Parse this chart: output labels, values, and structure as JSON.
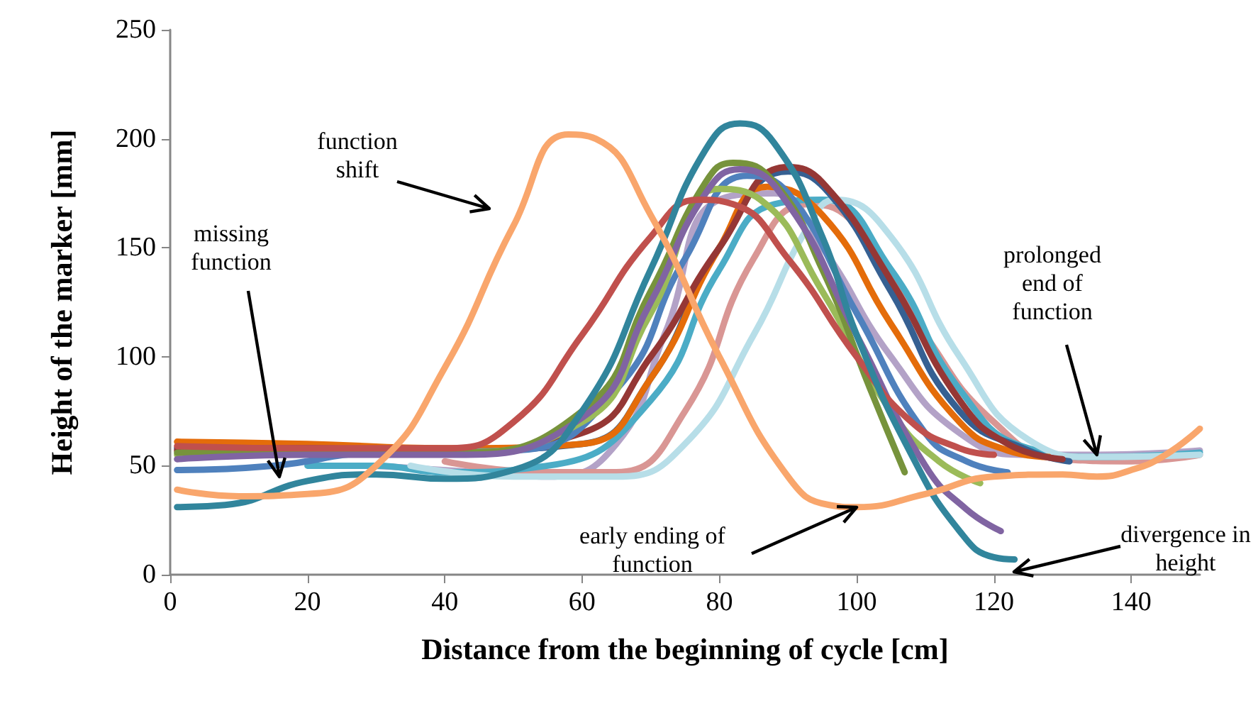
{
  "chart_data": {
    "type": "line",
    "xlabel": "Distance from the beginning of cycle [cm]",
    "ylabel": "Height of the marker [mm]",
    "xlim": [
      0,
      150
    ],
    "xticks": [
      0,
      20,
      40,
      60,
      80,
      100,
      120,
      140
    ],
    "ylim": [
      0,
      250
    ],
    "yticks": [
      0,
      50,
      100,
      150,
      200,
      250
    ],
    "grid": false,
    "marker": "none",
    "line_style": "solid",
    "annotations": [
      "function shift",
      "missing function",
      {
        "text": "early ending of function",
        "x": 100,
        "y": 31
      },
      {
        "text": "prolonged end of function",
        "x": 135,
        "y": 55
      },
      "divergence in height"
    ],
    "series": [
      {
        "color": "#b3a2c7",
        "x": [
          30,
          45,
          55,
          65,
          72,
          80,
          88,
          95,
          105,
          115,
          125,
          135,
          150
        ],
        "values": [
          50,
          47,
          45,
          60,
          110,
          172,
          175,
          150,
          100,
          65,
          55,
          55,
          57
        ]
      },
      {
        "color": "#d99694",
        "x": [
          40,
          55,
          65,
          75,
          85,
          93,
          100,
          110,
          120,
          130,
          140,
          150
        ],
        "values": [
          52,
          47,
          47,
          75,
          145,
          170,
          160,
          110,
          70,
          53,
          52,
          55
        ]
      },
      {
        "color": "#4bacc6",
        "x": [
          20,
          30,
          40,
          55,
          70,
          80,
          88,
          95,
          105,
          115,
          125,
          135,
          150
        ],
        "values": [
          50,
          50,
          47,
          50,
          80,
          140,
          170,
          172,
          140,
          85,
          58,
          54,
          56
        ]
      },
      {
        "color": "#b7dee8",
        "x": [
          35,
          50,
          65,
          75,
          85,
          93,
          97,
          105,
          115,
          125,
          135,
          150
        ],
        "values": [
          50,
          45,
          45,
          60,
          110,
          160,
          172,
          155,
          100,
          62,
          54,
          55
        ]
      },
      {
        "color": "#366092",
        "x": [
          1,
          40,
          60,
          70,
          80,
          90,
          96,
          105,
          115,
          125,
          131
        ],
        "values": [
          58,
          57,
          60,
          90,
          150,
          185,
          175,
          130,
          75,
          57,
          52
        ]
      },
      {
        "color": "#e46c0a",
        "x": [
          1,
          20,
          40,
          60,
          70,
          80,
          87,
          95,
          105,
          115,
          122,
          128
        ],
        "values": [
          61,
          60,
          58,
          60,
          90,
          150,
          178,
          165,
          115,
          70,
          57,
          54
        ]
      },
      {
        "color": "#953735",
        "x": [
          1,
          20,
          40,
          60,
          70,
          80,
          90,
          95,
          105,
          115,
          122,
          130
        ],
        "values": [
          57,
          58,
          56,
          65,
          100,
          150,
          187,
          180,
          135,
          80,
          60,
          53
        ]
      },
      {
        "color": "#4f81bd",
        "x": [
          1,
          15,
          30,
          50,
          65,
          75,
          84,
          90,
          100,
          110,
          116,
          122
        ],
        "values": [
          48,
          50,
          56,
          57,
          85,
          145,
          183,
          175,
          120,
          65,
          52,
          47
        ]
      },
      {
        "color": "#9bbb59",
        "x": [
          1,
          40,
          60,
          70,
          80,
          86,
          95,
          105,
          112,
          118
        ],
        "values": [
          55,
          56,
          70,
          120,
          177,
          172,
          130,
          75,
          52,
          42
        ]
      },
      {
        "color": "#77933c",
        "x": [
          1,
          20,
          40,
          60,
          70,
          78,
          82,
          88,
          95,
          102,
          107
        ],
        "values": [
          56,
          57,
          56,
          75,
          130,
          180,
          189,
          180,
          140,
          85,
          47
        ]
      },
      {
        "color": "#8064a2",
        "x": [
          1,
          20,
          40,
          60,
          70,
          78,
          83,
          90,
          100,
          110,
          116,
          121
        ],
        "values": [
          53,
          55,
          55,
          72,
          125,
          175,
          186,
          170,
          110,
          50,
          30,
          20
        ]
      },
      {
        "color": "#c0504d",
        "x": [
          1,
          20,
          40,
          50,
          60,
          70,
          77,
          82,
          90,
          100,
          108,
          115,
          120
        ],
        "values": [
          59,
          58,
          58,
          70,
          110,
          155,
          172,
          170,
          145,
          100,
          70,
          58,
          55
        ]
      },
      {
        "color": "#31859c",
        "x": [
          1,
          8,
          20,
          30,
          40,
          50,
          60,
          70,
          78,
          83,
          88,
          95,
          100,
          108,
          115,
          120,
          123
        ],
        "values": [
          31,
          32,
          43,
          46,
          44,
          48,
          75,
          140,
          195,
          207,
          198,
          155,
          110,
          55,
          20,
          8,
          7
        ]
      },
      {
        "color": "#f9a66c",
        "x": [
          1,
          10,
          20,
          30,
          40,
          50,
          58,
          62,
          70,
          80,
          90,
          96,
          100,
          110,
          120,
          130,
          135,
          140,
          145,
          150
        ],
        "values": [
          39,
          36,
          37,
          50,
          95,
          160,
          202,
          200,
          165,
          100,
          45,
          32,
          31,
          37,
          45,
          46,
          45,
          48,
          55,
          67
        ]
      }
    ]
  }
}
